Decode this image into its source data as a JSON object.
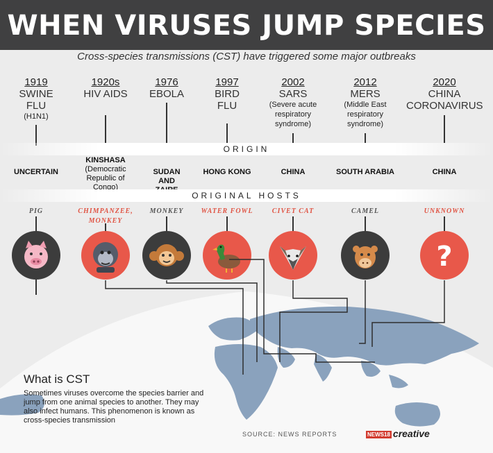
{
  "title": "WHEN VIRUSES JUMP SPECIES",
  "subtitle": "Cross-species transmissions (CST) have triggered some major outbreaks",
  "origin_label": "ORIGIN",
  "hosts_label": "ORIGINAL HOSTS",
  "outbreaks": [
    {
      "year": "1919",
      "name": "SWINE\nFLU",
      "sub": "(H1N1)",
      "origin": "UNCERTAIN",
      "origin_sub": "",
      "host": "PIG",
      "host_icon": "pig-icon"
    },
    {
      "year": "1920s",
      "name": "HIV AIDS",
      "sub": "",
      "origin": "KINSHASA",
      "origin_sub": "(Democratic\nRepublic of\nCongo)",
      "host": "CHIMPANZEE,\nMONKEY",
      "host_icon": "chimpanzee-icon"
    },
    {
      "year": "1976",
      "name": "EBOLA",
      "sub": "",
      "origin": "SUDAN\nAND\nZAIRE",
      "origin_sub": "",
      "host": "MONKEY",
      "host_icon": "monkey-icon"
    },
    {
      "year": "1997",
      "name": "BIRD\nFLU",
      "sub": "",
      "origin": "HONG KONG",
      "origin_sub": "",
      "host": "WATER FOWL",
      "host_icon": "duck-icon"
    },
    {
      "year": "2002",
      "name": "SARS",
      "sub": "(Severe acute\nrespiratory\nsyndrome)",
      "origin": "CHINA",
      "origin_sub": "",
      "host": "CIVET CAT",
      "host_icon": "civet-cat-icon"
    },
    {
      "year": "2012",
      "name": "MERS",
      "sub": "(Middle East\nrespiratory\nsyndrome)",
      "origin": "SOUTH ARABIA",
      "origin_sub": "",
      "host": "CAMEL",
      "host_icon": "camel-icon"
    },
    {
      "year": "2020",
      "name": "CHINA\nCORONAVIRUS",
      "sub": "",
      "origin": "CHINA",
      "origin_sub": "",
      "host": "UNKNOWN",
      "host_icon": "question-mark-icon"
    }
  ],
  "cst": {
    "heading": "What is CST",
    "text": "Sometimes viruses overcome the species barrier and jump from one animal species to another. They may also infect humans. This phenomenon is known as cross-species transmission"
  },
  "source": "SOURCE: NEWS REPORTS",
  "logo": {
    "badge": "NEWS18",
    "word": "creative"
  },
  "colors": {
    "header": "#404041",
    "accent_red": "#e8584a",
    "dark_circle": "#3c3c3c",
    "map": "#8aa2bd"
  }
}
